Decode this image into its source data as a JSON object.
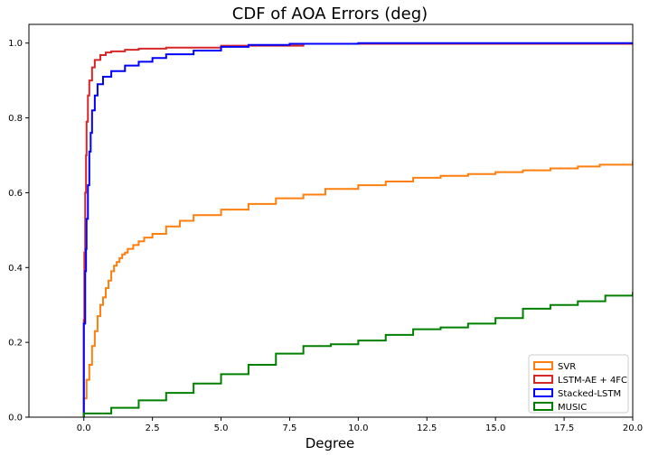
{
  "chart_data": {
    "type": "line",
    "title": "CDF of AOA Errors (deg)",
    "xlabel": "Degree",
    "ylabel": "",
    "xlim": [
      -2,
      20
    ],
    "ylim": [
      0,
      1.05
    ],
    "xticks": [
      0.0,
      2.5,
      5.0,
      7.5,
      10.0,
      12.5,
      15.0,
      17.5,
      20.0
    ],
    "xtick_labels": [
      "0.0",
      "2.5",
      "5.0",
      "7.5",
      "10.0",
      "12.5",
      "15.0",
      "17.5",
      "20.0"
    ],
    "yticks": [
      0.0,
      0.2,
      0.4,
      0.6,
      0.8,
      1.0
    ],
    "ytick_labels": [
      "0.0",
      "0.2",
      "0.4",
      "0.6",
      "0.8",
      "1.0"
    ],
    "grid": false,
    "legend_position": "lower-right",
    "step": true,
    "series": [
      {
        "name": "SVR",
        "color": "#ff7f0e",
        "x": [
          0.0,
          0.1,
          0.2,
          0.3,
          0.4,
          0.5,
          0.6,
          0.7,
          0.8,
          0.9,
          1.0,
          1.1,
          1.2,
          1.3,
          1.4,
          1.5,
          1.6,
          1.8,
          2.0,
          2.2,
          2.5,
          3.0,
          3.5,
          4.0,
          5.0,
          6.0,
          7.0,
          8.0,
          8.8,
          10.0,
          11.0,
          12.0,
          13.0,
          14.0,
          15.0,
          16.0,
          17.0,
          18.0,
          18.8,
          20.0
        ],
        "y": [
          0.05,
          0.1,
          0.14,
          0.19,
          0.23,
          0.27,
          0.3,
          0.32,
          0.345,
          0.365,
          0.39,
          0.405,
          0.415,
          0.425,
          0.435,
          0.44,
          0.45,
          0.46,
          0.47,
          0.48,
          0.49,
          0.51,
          0.525,
          0.54,
          0.555,
          0.57,
          0.585,
          0.595,
          0.61,
          0.62,
          0.63,
          0.64,
          0.645,
          0.65,
          0.655,
          0.66,
          0.665,
          0.67,
          0.675,
          0.685
        ]
      },
      {
        "name": "LSTM-AE + 4FC",
        "color": "#d62728",
        "x": [
          0.0,
          0.02,
          0.05,
          0.08,
          0.1,
          0.15,
          0.2,
          0.3,
          0.4,
          0.6,
          0.8,
          1.0,
          1.5,
          2.0,
          3.0,
          5.0,
          8.0,
          20.0
        ],
        "y": [
          0.26,
          0.44,
          0.6,
          0.7,
          0.79,
          0.86,
          0.9,
          0.935,
          0.955,
          0.968,
          0.975,
          0.978,
          0.982,
          0.985,
          0.988,
          0.993,
          0.998,
          1.0
        ]
      },
      {
        "name": "Stacked-LSTM",
        "color": "#0000ff",
        "x": [
          0.0,
          0.05,
          0.08,
          0.1,
          0.15,
          0.2,
          0.25,
          0.3,
          0.4,
          0.5,
          0.7,
          1.0,
          1.5,
          2.0,
          2.5,
          3.0,
          4.0,
          5.0,
          6.0,
          7.5,
          10.0,
          20.0
        ],
        "y": [
          0.25,
          0.39,
          0.45,
          0.53,
          0.62,
          0.71,
          0.76,
          0.82,
          0.86,
          0.89,
          0.91,
          0.925,
          0.94,
          0.95,
          0.96,
          0.97,
          0.98,
          0.99,
          0.995,
          0.998,
          1.0,
          1.0
        ]
      },
      {
        "name": "MUSIC",
        "color": "#008000",
        "x": [
          0.0,
          1.0,
          2.0,
          3.0,
          4.0,
          5.0,
          6.0,
          7.0,
          8.0,
          9.0,
          10.0,
          11.0,
          12.0,
          13.0,
          14.0,
          15.0,
          16.0,
          17.0,
          18.0,
          19.0,
          20.0
        ],
        "y": [
          0.01,
          0.025,
          0.045,
          0.065,
          0.09,
          0.115,
          0.14,
          0.17,
          0.19,
          0.195,
          0.205,
          0.22,
          0.235,
          0.24,
          0.25,
          0.265,
          0.29,
          0.3,
          0.31,
          0.325,
          0.335
        ]
      }
    ]
  }
}
